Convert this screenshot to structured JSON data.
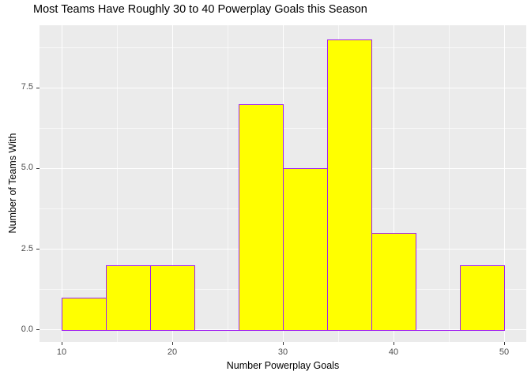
{
  "chart_data": {
    "type": "bar",
    "subtype": "histogram",
    "title": "Most Teams Have Roughly 30 to 40 Powerplay Goals this Season",
    "xlabel": "Number Powerplay Goals",
    "ylabel": "Number of Teams With",
    "bin_width": 4,
    "bins": [
      {
        "x0": 10,
        "x1": 14,
        "count": 1
      },
      {
        "x0": 14,
        "x1": 18,
        "count": 2
      },
      {
        "x0": 18,
        "x1": 22,
        "count": 2
      },
      {
        "x0": 22,
        "x1": 26,
        "count": 0
      },
      {
        "x0": 26,
        "x1": 30,
        "count": 7
      },
      {
        "x0": 30,
        "x1": 34,
        "count": 5
      },
      {
        "x0": 34,
        "x1": 38,
        "count": 9
      },
      {
        "x0": 38,
        "x1": 42,
        "count": 3
      },
      {
        "x0": 42,
        "x1": 46,
        "count": 0
      },
      {
        "x0": 46,
        "x1": 50,
        "count": 2
      }
    ],
    "x_ticks": [
      10,
      20,
      30,
      40,
      50
    ],
    "x_tick_labels": [
      "10",
      "20",
      "30",
      "40",
      "50"
    ],
    "y_ticks": [
      0,
      2.5,
      5,
      7.5
    ],
    "y_tick_labels": [
      "0.0",
      "2.5",
      "5.0",
      "7.5"
    ],
    "x_minor_gridlines": [
      15,
      25,
      35,
      45
    ],
    "y_minor_gridlines": [
      1.25,
      3.75,
      6.25,
      8.75
    ],
    "xlim": [
      8,
      52
    ],
    "ylim": [
      -0.37,
      9.44
    ],
    "grid": true,
    "legend": "none",
    "colors": {
      "bar_fill": "#FFFF00",
      "bar_border": "#A020F0",
      "panel_background": "#EBEBEB",
      "gridline": "#FFFFFF",
      "tick_label": "#4D4D4D",
      "tick_mark": "#333333",
      "title": "#000000",
      "axis_title": "#000000"
    }
  }
}
